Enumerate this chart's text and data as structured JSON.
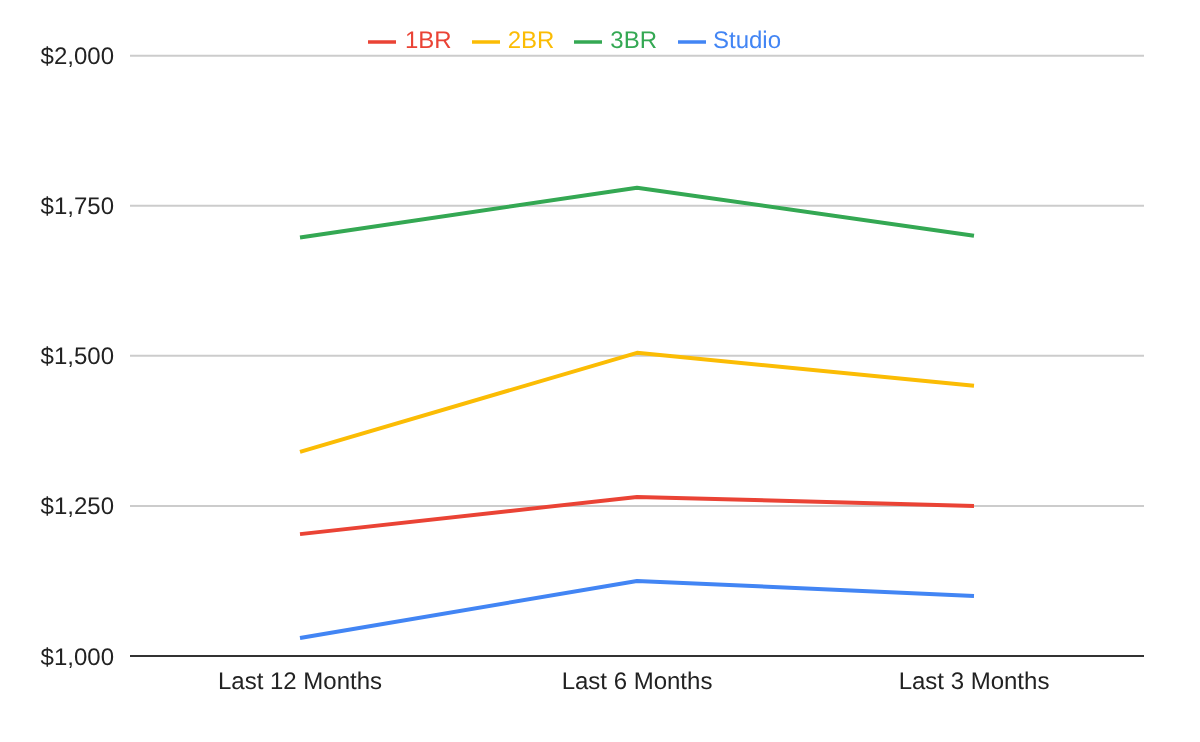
{
  "chart_data": {
    "type": "line",
    "categories": [
      "Last 12 Months",
      "Last 6 Months",
      "Last 3 Months"
    ],
    "series": [
      {
        "name": "Studio",
        "color": "#4285f4",
        "values": [
          1030,
          1125,
          1100
        ]
      },
      {
        "name": "1BR",
        "color": "#ea4335",
        "values": [
          1203,
          1265,
          1250
        ]
      },
      {
        "name": "2BR",
        "color": "#fbbc04",
        "values": [
          1340,
          1505,
          1450
        ]
      },
      {
        "name": "3BR",
        "color": "#34a853",
        "values": [
          1697,
          1780,
          1700
        ]
      }
    ],
    "ylim": [
      1000,
      2000
    ],
    "yticks": [
      {
        "value": 1000,
        "label": "$1,000"
      },
      {
        "value": 1250,
        "label": "$1,250"
      },
      {
        "value": 1500,
        "label": "$1,500"
      },
      {
        "value": 1750,
        "label": "$1,750"
      },
      {
        "value": 2000,
        "label": "$2,000"
      }
    ],
    "grid": "y",
    "legend": "top",
    "marker": "none",
    "line_style": "solid"
  }
}
